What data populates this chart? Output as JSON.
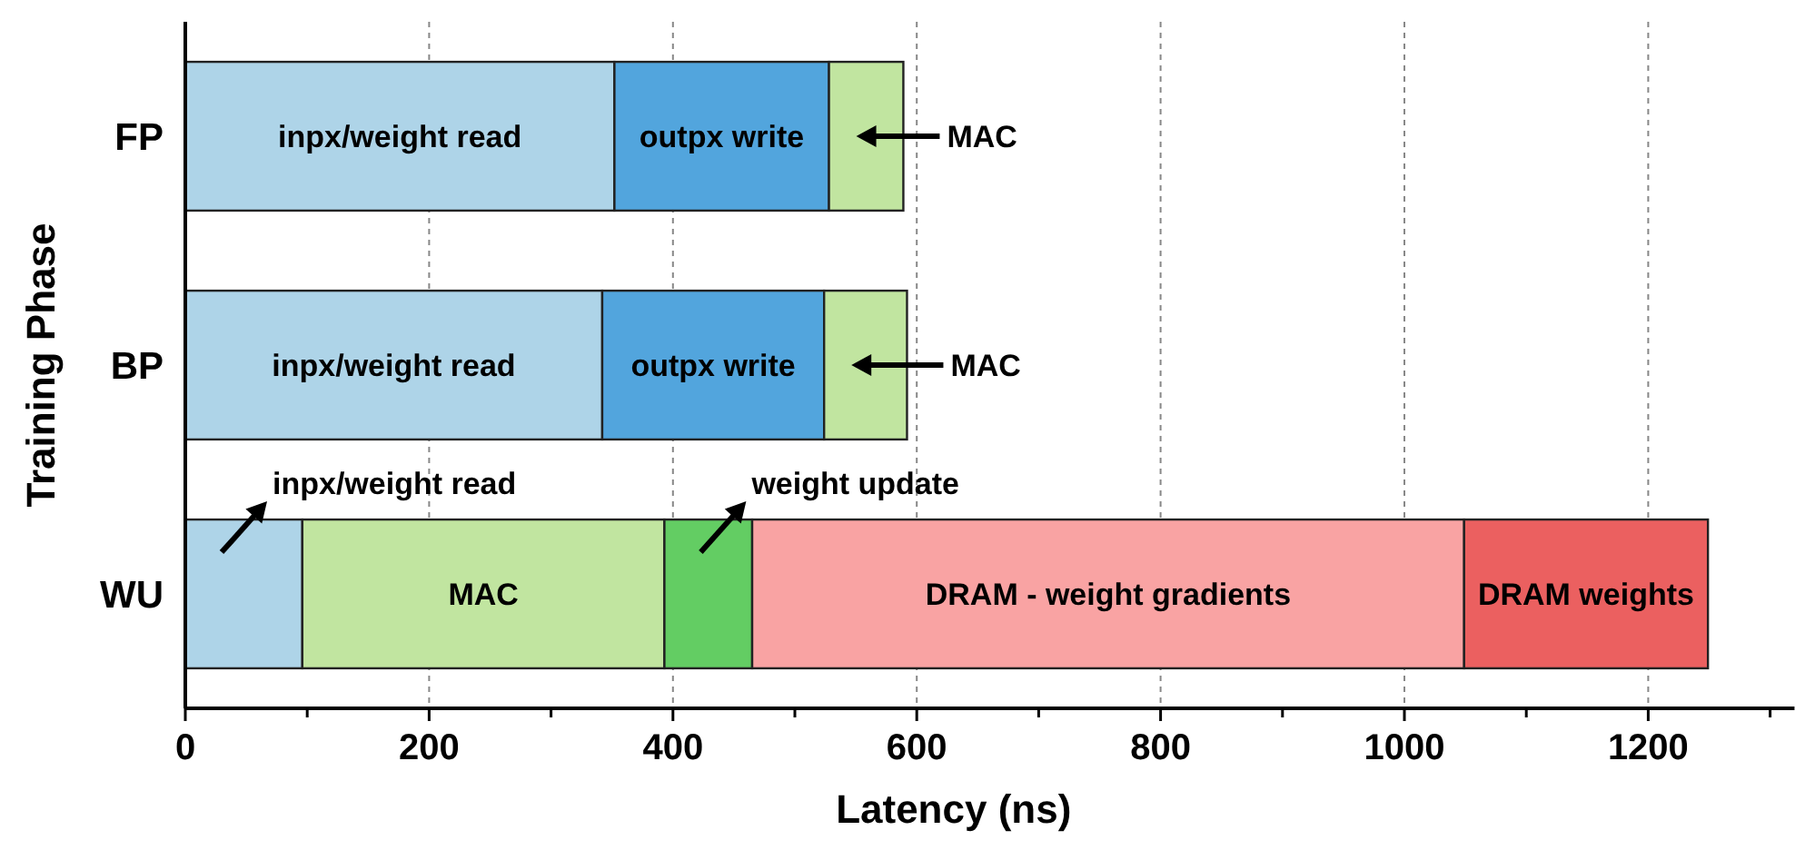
{
  "chart_data": {
    "type": "bar",
    "orientation": "horizontal",
    "stacked": true,
    "categories": [
      "FP",
      "BP",
      "WU"
    ],
    "xlabel": "Latency (ns)",
    "ylabel": "Training Phase",
    "xlim": [
      0,
      1320
    ],
    "xticks": [
      0,
      {
        "value": 100,
        "label": null
      },
      200,
      {
        "value": 300,
        "label": null
      },
      400,
      {
        "value": 500,
        "label": null
      },
      600,
      {
        "value": 700,
        "label": null
      },
      800,
      {
        "value": 900,
        "label": null
      },
      1000,
      {
        "value": 1100,
        "label": null
      },
      1200,
      {
        "value": 1300,
        "label": null
      }
    ],
    "grid": "x",
    "series": [
      {
        "name": "inpx/weight read",
        "color": "#aed4e8",
        "values": [
          352,
          342,
          96
        ]
      },
      {
        "name": "outpx write",
        "color": "#52a5dd",
        "values": [
          176,
          182,
          null
        ]
      },
      {
        "name": "MAC",
        "color": "#c1e5a0",
        "values": [
          61,
          68,
          297
        ]
      },
      {
        "name": "weight update",
        "color": "#63cd63",
        "values": [
          null,
          null,
          72
        ]
      },
      {
        "name": "DRAM - weight gradients",
        "color": "#f9a3a3",
        "values": [
          null,
          null,
          584
        ]
      },
      {
        "name": "DRAM weights",
        "color": "#eb6060",
        "values": [
          null,
          null,
          200
        ]
      }
    ]
  }
}
